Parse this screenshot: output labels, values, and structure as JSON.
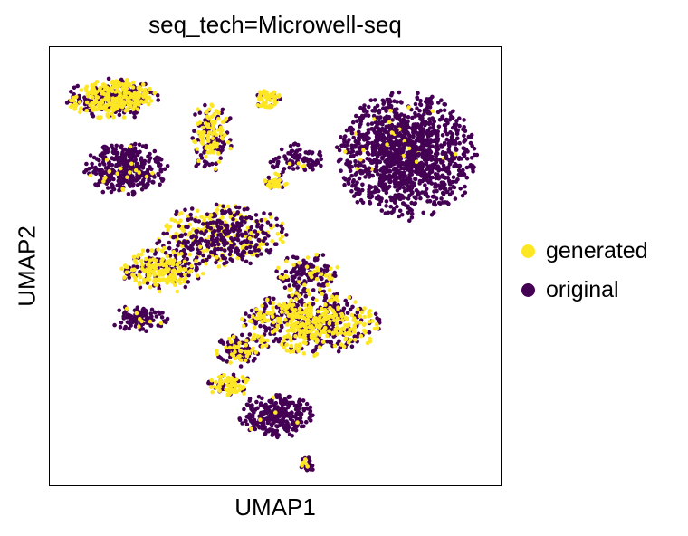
{
  "chart_data": {
    "type": "scatter",
    "title": "seq_tech=Microwell-seq",
    "xlabel": "UMAP1",
    "ylabel": "UMAP2",
    "xlim": [
      0,
      100
    ],
    "ylim": [
      0,
      100
    ],
    "grid": false,
    "ticks": false,
    "legend_placement": "right",
    "series": [
      {
        "name": "generated",
        "color": "#fde725"
      },
      {
        "name": "original",
        "color": "#440154"
      }
    ],
    "clusters": [
      {
        "cx": 14,
        "cy": 88,
        "rx": 10,
        "ry": 4.5,
        "n": 420,
        "gen_frac": 0.55
      },
      {
        "cx": 17,
        "cy": 72,
        "rx": 9,
        "ry": 6,
        "n": 380,
        "gen_frac": 0.04
      },
      {
        "cx": 36,
        "cy": 79,
        "rx": 5,
        "ry": 8,
        "n": 180,
        "gen_frac": 0.45
      },
      {
        "cx": 48,
        "cy": 88,
        "rx": 3,
        "ry": 2,
        "n": 50,
        "gen_frac": 0.75
      },
      {
        "cx": 55,
        "cy": 74,
        "rx": 6,
        "ry": 4,
        "n": 90,
        "gen_frac": 0.08
      },
      {
        "cx": 50,
        "cy": 69,
        "rx": 2.5,
        "ry": 2,
        "n": 40,
        "gen_frac": 0.55
      },
      {
        "cx": 79,
        "cy": 75,
        "rx": 15,
        "ry": 14,
        "n": 1300,
        "gen_frac": 0.01
      },
      {
        "cx": 38,
        "cy": 57,
        "rx": 14,
        "ry": 7,
        "n": 480,
        "gen_frac": 0.42
      },
      {
        "cx": 25,
        "cy": 49,
        "rx": 9,
        "ry": 5,
        "n": 260,
        "gen_frac": 0.55
      },
      {
        "cx": 57,
        "cy": 48,
        "rx": 7,
        "ry": 5,
        "n": 160,
        "gen_frac": 0.25
      },
      {
        "cx": 20,
        "cy": 38,
        "rx": 6,
        "ry": 3,
        "n": 110,
        "gen_frac": 0.05
      },
      {
        "cx": 58,
        "cy": 37,
        "rx": 15,
        "ry": 7,
        "n": 650,
        "gen_frac": 0.48
      },
      {
        "cx": 42,
        "cy": 31,
        "rx": 5,
        "ry": 4,
        "n": 120,
        "gen_frac": 0.3
      },
      {
        "cx": 40,
        "cy": 23,
        "rx": 5,
        "ry": 2.5,
        "n": 90,
        "gen_frac": 0.6
      },
      {
        "cx": 50,
        "cy": 16,
        "rx": 8,
        "ry": 5,
        "n": 320,
        "gen_frac": 0.02
      },
      {
        "cx": 57,
        "cy": 5,
        "rx": 2,
        "ry": 2,
        "n": 25,
        "gen_frac": 0.2
      }
    ]
  }
}
